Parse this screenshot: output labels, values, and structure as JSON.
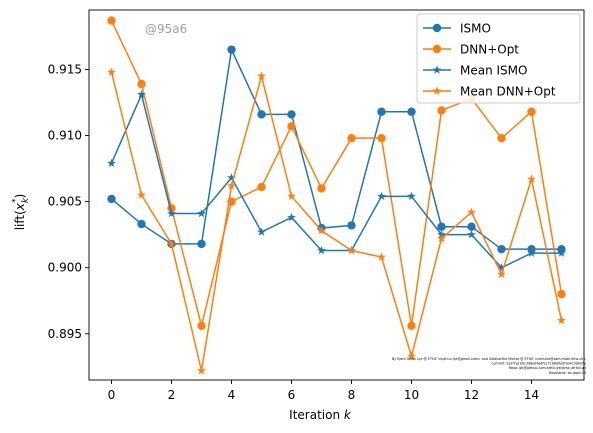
{
  "chart_data": {
    "type": "line",
    "title": "",
    "xlabel": "Iteration",
    "xlabel_var": "k",
    "ylabel_main": "lift(",
    "ylabel_sub": "k",
    "ylabel_sup": "*",
    "ylabel_x": "x",
    "ylabel_close": ")",
    "watermark": "@95a6",
    "xlim": [
      -0.75,
      15.75
    ],
    "ylim": [
      0.8915,
      0.9195
    ],
    "xticks": [
      0,
      2,
      4,
      6,
      8,
      10,
      12,
      14
    ],
    "yticks": [
      0.895,
      0.9,
      0.905,
      0.91,
      0.915
    ],
    "ytick_labels": [
      "0.895",
      "0.900",
      "0.905",
      "0.910",
      "0.915"
    ],
    "legend_position": "top-right",
    "grid": false,
    "x": [
      0,
      1,
      2,
      3,
      4,
      5,
      6,
      7,
      8,
      9,
      10,
      11,
      12,
      13,
      14,
      15
    ],
    "series": [
      {
        "name": "ISMO",
        "color": "#1f77b4",
        "marker": "circle",
        "values": [
          0.9052,
          0.9033,
          0.9018,
          0.9018,
          0.9165,
          0.9116,
          0.9116,
          0.903,
          0.9032,
          0.9118,
          0.9118,
          0.9031,
          0.9031,
          0.9014,
          0.9014,
          0.9014
        ]
      },
      {
        "name": "DNN+Opt",
        "color": "#ff7f0e",
        "marker": "circle",
        "values": [
          0.9187,
          0.9139,
          0.9045,
          0.8956,
          0.905,
          0.9061,
          0.9107,
          0.906,
          0.9098,
          0.9098,
          0.8956,
          0.9119,
          0.9128,
          0.9098,
          0.9118,
          0.898
        ]
      },
      {
        "name": "Mean ISMO",
        "color": "#1f77b4",
        "marker": "star",
        "values": [
          0.9079,
          0.9131,
          0.9041,
          0.9041,
          0.9068,
          0.9027,
          0.9038,
          0.9013,
          0.9013,
          0.9054,
          0.9054,
          0.9025,
          0.9025,
          0.9,
          0.9011,
          0.9011
        ]
      },
      {
        "name": "Mean DNN+Opt",
        "color": "#ff7f0e",
        "marker": "star",
        "values": [
          0.9148,
          0.9055,
          0.9018,
          0.8922,
          0.9062,
          0.9145,
          0.9054,
          0.9028,
          0.9013,
          0.9008,
          0.8933,
          0.9022,
          0.9042,
          0.8995,
          0.9067,
          0.896
        ]
      }
    ],
    "legend_colors": {
      "frame": "#cccccc",
      "text": "#000000"
    },
    "footnote_lines": [
      "By Kjetil Olsen Lye @ ETHZ <kjetil.o.lye@gmail.com> and Siddhartha Mishra @ ETHZ <smishra@sam.math.ethz.ch>",
      "Commit: 5a2f7e1b9c3d8e04a6f2c71b8d9e0f3a4c5b6d7e",
      "Repo: git@github.com:kjetil-lye/ismo_airfoil.git",
      "Hostname: ex.login.19"
    ]
  }
}
